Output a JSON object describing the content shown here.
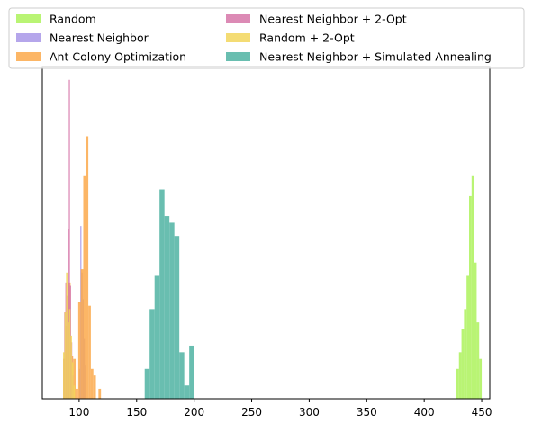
{
  "chart_data": {
    "type": "histogram",
    "title": "",
    "xlabel": "",
    "ylabel": "",
    "xlim": [
      68,
      457
    ],
    "ylim": [
      0,
      1
    ],
    "xticks": [
      100,
      150,
      200,
      250,
      300,
      350,
      400,
      450
    ],
    "yticks_visible": false,
    "grid": false,
    "legend": {
      "placement": "top",
      "columns": 2
    },
    "series": [
      {
        "name": "Random",
        "color": "#adf25c",
        "bins": [
          {
            "x0": 428.0,
            "x1": 430.2,
            "v": 0.09
          },
          {
            "x0": 430.2,
            "x1": 432.4,
            "v": 0.14
          },
          {
            "x0": 432.4,
            "x1": 434.6,
            "v": 0.21
          },
          {
            "x0": 434.6,
            "x1": 436.8,
            "v": 0.27
          },
          {
            "x0": 436.8,
            "x1": 439.0,
            "v": 0.37
          },
          {
            "x0": 439.0,
            "x1": 441.2,
            "v": 0.61
          },
          {
            "x0": 441.2,
            "x1": 443.4,
            "v": 0.67
          },
          {
            "x0": 443.4,
            "x1": 445.6,
            "v": 0.41
          },
          {
            "x0": 445.6,
            "x1": 447.8,
            "v": 0.23
          },
          {
            "x0": 447.8,
            "x1": 450.0,
            "v": 0.12
          }
        ]
      },
      {
        "name": "Nearest Neighbor",
        "color": "#a897e8",
        "bins": [
          {
            "x0": 100.0,
            "x1": 101.0,
            "v": 0.09
          },
          {
            "x0": 101.0,
            "x1": 102.0,
            "v": 0.52
          },
          {
            "x0": 102.0,
            "x1": 103.0,
            "v": 0.38
          },
          {
            "x0": 103.0,
            "x1": 104.0,
            "v": 0.3
          },
          {
            "x0": 104.0,
            "x1": 105.0,
            "v": 0.18
          },
          {
            "x0": 105.0,
            "x1": 106.0,
            "v": 0.1
          }
        ]
      },
      {
        "name": "Ant Colony Optimization",
        "color": "#fca94b",
        "bins": [
          {
            "x0": 86.0,
            "x1": 88.2,
            "v": 0.12
          },
          {
            "x0": 88.2,
            "x1": 90.4,
            "v": 0.22
          },
          {
            "x0": 90.4,
            "x1": 92.6,
            "v": 0.35
          },
          {
            "x0": 92.6,
            "x1": 94.8,
            "v": 0.13
          },
          {
            "x0": 94.8,
            "x1": 97.0,
            "v": 0.12
          },
          {
            "x0": 97.0,
            "x1": 99.2,
            "v": 0.03
          },
          {
            "x0": 99.2,
            "x1": 101.4,
            "v": 0.29
          },
          {
            "x0": 101.4,
            "x1": 103.6,
            "v": 0.39
          },
          {
            "x0": 103.6,
            "x1": 105.8,
            "v": 0.67
          },
          {
            "x0": 105.8,
            "x1": 108.0,
            "v": 0.79
          },
          {
            "x0": 108.0,
            "x1": 110.2,
            "v": 0.28
          },
          {
            "x0": 110.2,
            "x1": 112.4,
            "v": 0.09
          },
          {
            "x0": 112.4,
            "x1": 114.6,
            "v": 0.07
          },
          {
            "x0": 114.6,
            "x1": 116.8,
            "v": 0.0
          },
          {
            "x0": 116.8,
            "x1": 119.0,
            "v": 0.03
          }
        ]
      },
      {
        "name": "Nearest Neighbor + 2-Opt",
        "color": "#d675a8",
        "bins": [
          {
            "x0": 86.0,
            "x1": 87.0,
            "v": 0.12
          },
          {
            "x0": 87.0,
            "x1": 88.0,
            "v": 0.26
          },
          {
            "x0": 88.0,
            "x1": 89.0,
            "v": 0.35
          },
          {
            "x0": 89.0,
            "x1": 90.0,
            "v": 0.31
          },
          {
            "x0": 90.0,
            "x1": 91.0,
            "v": 0.51
          },
          {
            "x0": 91.0,
            "x1": 92.0,
            "v": 0.96
          },
          {
            "x0": 92.0,
            "x1": 93.0,
            "v": 0.34
          },
          {
            "x0": 93.0,
            "x1": 94.0,
            "v": 0.17
          },
          {
            "x0": 94.0,
            "x1": 95.0,
            "v": 0.07
          }
        ]
      },
      {
        "name": "Random + 2-Opt",
        "color": "#f2d65c",
        "bins": [
          {
            "x0": 86.0,
            "x1": 87.3,
            "v": 0.14
          },
          {
            "x0": 87.3,
            "x1": 88.6,
            "v": 0.26
          },
          {
            "x0": 88.6,
            "x1": 89.9,
            "v": 0.38
          },
          {
            "x0": 89.9,
            "x1": 91.2,
            "v": 0.23
          },
          {
            "x0": 91.2,
            "x1": 92.5,
            "v": 0.27
          },
          {
            "x0": 92.5,
            "x1": 93.8,
            "v": 0.19
          },
          {
            "x0": 93.8,
            "x1": 95.1,
            "v": 0.11
          },
          {
            "x0": 95.1,
            "x1": 96.4,
            "v": 0.04
          }
        ]
      },
      {
        "name": "Nearest Neighbor + Simulated Annealing",
        "color": "#4fb3a2",
        "bins": [
          {
            "x0": 157.0,
            "x1": 161.3,
            "v": 0.09
          },
          {
            "x0": 161.3,
            "x1": 165.6,
            "v": 0.27
          },
          {
            "x0": 165.6,
            "x1": 169.9,
            "v": 0.37
          },
          {
            "x0": 169.9,
            "x1": 174.2,
            "v": 0.63
          },
          {
            "x0": 174.2,
            "x1": 178.5,
            "v": 0.55
          },
          {
            "x0": 178.5,
            "x1": 182.8,
            "v": 0.53
          },
          {
            "x0": 182.8,
            "x1": 187.1,
            "v": 0.49
          },
          {
            "x0": 187.1,
            "x1": 191.4,
            "v": 0.14
          },
          {
            "x0": 191.4,
            "x1": 195.7,
            "v": 0.04
          },
          {
            "x0": 195.7,
            "x1": 200.0,
            "v": 0.16
          }
        ]
      }
    ]
  }
}
